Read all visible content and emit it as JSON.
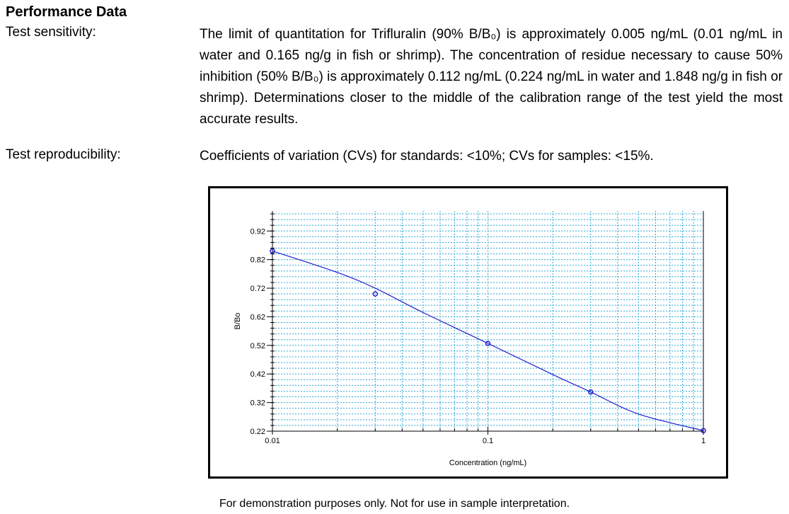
{
  "section": {
    "title": "Performance Data",
    "sensitivity_label": "Test sensitivity:",
    "sensitivity_text": "The limit of quantitation for Trifluralin (90% B/B₀) is approximately 0.005 ng/mL (0.01 ng/mL in water and 0.165 ng/g in fish or shrimp).  The concentration of residue necessary to cause 50% inhibition (50% B/B₀) is approximately 0.112 ng/mL (0.224 ng/mL in water and 1.848 ng/g in fish or shrimp).  Determinations closer to the middle of the calibration range of the test yield the most accurate results.",
    "reproducibility_label": "Test reproducibility:",
    "reproducibility_text": "Coefficients of variation (CVs) for standards: <10%; CVs for samples: <15%."
  },
  "footer": "For demonstration purposes only.  Not for use in sample interpretation.",
  "colors": {
    "series": "#1f1fd0",
    "grid": "#2aa8d8"
  },
  "chart_data": {
    "type": "scatter",
    "xscale": "log",
    "xlim": [
      0.01,
      1
    ],
    "ylim": [
      0.22,
      0.99
    ],
    "xlabel": "Concentration (ng/mL)",
    "ylabel": "B/Bo",
    "xticks": [
      "0.01",
      "0.1",
      "1"
    ],
    "yticks": [
      "0.22",
      "0.32",
      "0.42",
      "0.52",
      "0.62",
      "0.72",
      "0.82",
      "0.92"
    ],
    "grid": true,
    "series": [
      {
        "name": "standards",
        "x": [
          0.01,
          0.03,
          0.1,
          0.3,
          1
        ],
        "y": [
          0.85,
          0.7,
          0.527,
          0.357,
          0.222
        ]
      },
      {
        "name": "fit",
        "x": [
          0.01,
          0.02,
          0.03,
          0.05,
          0.1,
          0.2,
          0.3,
          0.5,
          1
        ],
        "y": [
          0.85,
          0.775,
          0.72,
          0.635,
          0.527,
          0.418,
          0.357,
          0.28,
          0.222
        ]
      }
    ]
  }
}
